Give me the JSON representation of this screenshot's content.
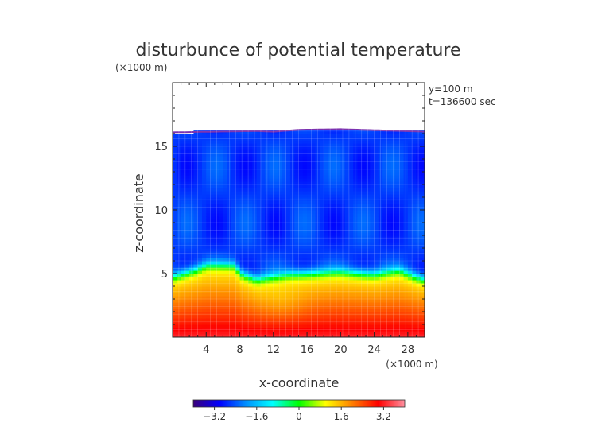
{
  "chart_data": {
    "type": "heatmap",
    "title": "disturbunce of potential temperature",
    "xlabel": "x-coordinate",
    "ylabel": "z-coordinate",
    "x_unit": "(×1000 m)",
    "z_unit": "(×1000 m)",
    "annotation_lines": [
      "y=100 m",
      "t=136600 sec"
    ],
    "xlim": [
      0,
      30
    ],
    "zlim": [
      0,
      20
    ],
    "x_ticks": [
      4,
      8,
      12,
      16,
      20,
      24,
      28
    ],
    "z_ticks": [
      5,
      10,
      15
    ],
    "colorbar": {
      "range": [
        -4,
        4
      ],
      "ticks": [
        -3.2,
        -1.6,
        0,
        1.6,
        3.2
      ],
      "tick_labels": [
        "−3.2",
        "−1.6",
        "0",
        "1.6",
        "3.2"
      ]
    },
    "domain_top_z": [
      [
        0,
        16.1
      ],
      [
        5,
        16.15
      ],
      [
        10,
        16.2
      ],
      [
        12,
        16.15
      ],
      [
        15,
        16.3
      ],
      [
        20,
        16.35
      ],
      [
        25,
        16.25
      ],
      [
        30,
        16.15
      ]
    ],
    "interface_z": [
      [
        0,
        4.8
      ],
      [
        3,
        5.4
      ],
      [
        4,
        5.7
      ],
      [
        7.5,
        5.7
      ],
      [
        8,
        5.1
      ],
      [
        10,
        4.6
      ],
      [
        14,
        5.0
      ],
      [
        20,
        5.2
      ],
      [
        24,
        5.0
      ],
      [
        27,
        5.3
      ],
      [
        29,
        4.8
      ],
      [
        30,
        4.6
      ]
    ],
    "upper_layer_value": -2.6,
    "lower_layer_surface_value": 3.3,
    "lower_layer_interface_value": 1.0
  },
  "colors": {
    "colormap": [
      "#3a007a",
      "#0000ff",
      "#0090ff",
      "#00ffff",
      "#00ff00",
      "#ffff00",
      "#ff8000",
      "#ff0000",
      "#ff90a0"
    ],
    "frame": "#222222",
    "text": "#333333",
    "grid": "#ffffff"
  }
}
